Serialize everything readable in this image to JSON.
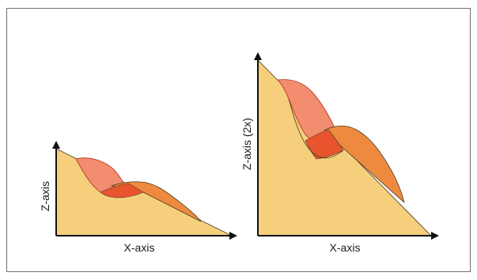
{
  "colors": {
    "background": "#ffffff",
    "border": "#6e6e6e",
    "axis": "#111111",
    "base_fill": "#f5cf7c",
    "upper_lobe_fill": "#f28d70",
    "lower_lobe_fill": "#ee8a3f",
    "overlap_fill": "#e8542e",
    "outline": "#4a3a22"
  },
  "left_diagram": {
    "x_label": "X-axis",
    "z_label": "Z-axis"
  },
  "right_diagram": {
    "x_label": "X-axis",
    "z_label": "Z-axis (2x)"
  }
}
